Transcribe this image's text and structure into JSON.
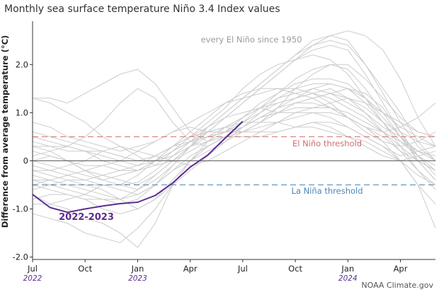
{
  "colors": {
    "el_nino": "#cc6f6f",
    "la_nina": "#4a86b8",
    "highlight": "#5b2d90",
    "background_series": "#cccccc",
    "axis": "#333333",
    "zero_line": "#555555",
    "gray_text": "#9a9a9a"
  },
  "chart_data": {
    "type": "line",
    "title": "Monthly sea surface temperature Niño 3.4 Index values",
    "ylabel": "Difference from average temperature (°C)",
    "xlabel": "",
    "ylim": [
      -2.05,
      2.9
    ],
    "xlim": [
      0,
      23
    ],
    "yticks": [
      {
        "value": 2.0,
        "label": "2.0"
      },
      {
        "value": 1.0,
        "label": "1.0"
      },
      {
        "value": 0,
        "label": "0"
      },
      {
        "value": -1.0,
        "label": "-1.0"
      },
      {
        "value": -2.0,
        "label": "-2.0"
      }
    ],
    "xticks": [
      {
        "index": 0,
        "label": "Jul",
        "year": "2022"
      },
      {
        "index": 3,
        "label": "Oct",
        "year": ""
      },
      {
        "index": 6,
        "label": "Jan",
        "year": "2023"
      },
      {
        "index": 9,
        "label": "Apr",
        "year": ""
      },
      {
        "index": 12,
        "label": "Jul",
        "year": ""
      },
      {
        "index": 15,
        "label": "Oct",
        "year": ""
      },
      {
        "index": 18,
        "label": "Jan",
        "year": "2024"
      },
      {
        "index": 21,
        "label": "Apr",
        "year": ""
      }
    ],
    "thresholds": [
      {
        "name": "El Niño threshold",
        "value": 0.5,
        "color": "#cc6f6f"
      },
      {
        "name": "La Niña threshold",
        "value": -0.5,
        "color": "#4a86b8"
      }
    ],
    "highlight_series": {
      "name": "2022-2023",
      "values": [
        -0.7,
        -0.97,
        -1.07,
        -1.0,
        -0.94,
        -0.89,
        -0.86,
        -0.72,
        -0.46,
        -0.13,
        0.12,
        0.47,
        0.82
      ]
    },
    "background_label": "every El Niño since 1950",
    "background_series": [
      {
        "name": "El Niño 1",
        "values": [
          0.3,
          0.2,
          0.0,
          -0.2,
          -0.4,
          -0.5,
          -0.45,
          -0.2,
          0.1,
          0.4,
          0.7,
          1.0,
          1.3,
          1.6,
          1.9,
          2.2,
          2.4,
          2.5,
          2.4,
          2.0,
          1.4,
          0.8,
          0.3,
          0.0
        ]
      },
      {
        "name": "El Niño 2",
        "values": [
          -0.5,
          -0.6,
          -0.7,
          -0.8,
          -0.8,
          -0.9,
          -0.8,
          -0.5,
          -0.1,
          0.3,
          0.6,
          0.9,
          1.2,
          1.5,
          1.8,
          2.1,
          2.3,
          2.4,
          2.3,
          1.8,
          1.2,
          0.6,
          0.1,
          -0.3
        ]
      },
      {
        "name": "El Niño 3",
        "values": [
          1.3,
          1.2,
          1.0,
          0.8,
          0.5,
          0.3,
          0.1,
          -0.1,
          0.0,
          0.3,
          0.6,
          0.9,
          1.2,
          1.5,
          1.8,
          2.1,
          2.4,
          2.6,
          2.7,
          2.6,
          2.3,
          1.7,
          0.9,
          0.3
        ]
      },
      {
        "name": "El Niño 4",
        "values": [
          0.1,
          0.2,
          0.3,
          0.5,
          0.8,
          1.2,
          1.5,
          1.3,
          0.8,
          0.4,
          0.3,
          0.5,
          0.7,
          0.9,
          1.0,
          1.1,
          1.1,
          1.2,
          1.3,
          1.2,
          1.0,
          0.8,
          0.6,
          0.5
        ]
      },
      {
        "name": "El Niño 5",
        "values": [
          1.3,
          1.3,
          1.2,
          1.4,
          1.6,
          1.8,
          1.9,
          1.6,
          1.1,
          0.6,
          0.4,
          0.6,
          0.9,
          1.1,
          1.3,
          1.4,
          1.5,
          1.4,
          1.2,
          1.0,
          0.7,
          0.5,
          0.2,
          0.0
        ]
      },
      {
        "name": "El Niño 6",
        "values": [
          -0.2,
          -0.3,
          -0.4,
          -0.5,
          -0.6,
          -0.8,
          -1.0,
          -0.8,
          -0.4,
          0.0,
          0.3,
          0.5,
          0.7,
          0.9,
          1.1,
          1.3,
          1.5,
          1.6,
          1.5,
          1.3,
          0.9,
          0.5,
          0.1,
          -0.2
        ]
      },
      {
        "name": "El Niño 7",
        "values": [
          -1.1,
          -1.2,
          -1.3,
          -1.5,
          -1.6,
          -1.7,
          -1.4,
          -1.0,
          -0.5,
          0.0,
          0.4,
          0.7,
          0.9,
          1.1,
          1.2,
          1.3,
          1.4,
          1.5,
          1.3,
          1.0,
          0.6,
          0.2,
          -0.2,
          -0.5
        ]
      },
      {
        "name": "El Niño 8",
        "values": [
          -0.7,
          -0.9,
          -1.0,
          -1.2,
          -1.3,
          -1.5,
          -1.8,
          -1.3,
          -0.5,
          0.0,
          0.3,
          0.5,
          0.7,
          0.9,
          1.0,
          1.2,
          1.3,
          1.4,
          1.5,
          1.4,
          1.1,
          0.6,
          0.0,
          -0.4
        ]
      },
      {
        "name": "El Niño 9",
        "values": [
          0.6,
          0.5,
          0.4,
          0.3,
          0.2,
          0.1,
          0.0,
          0.1,
          0.3,
          0.5,
          0.7,
          0.9,
          1.0,
          1.1,
          1.0,
          1.0,
          1.0,
          1.0,
          0.9,
          0.7,
          0.4,
          0.0,
          -0.5,
          -0.9
        ]
      },
      {
        "name": "El Niño 10",
        "values": [
          0.4,
          0.3,
          0.3,
          0.2,
          0.1,
          0.0,
          -0.1,
          0.0,
          0.2,
          0.4,
          0.6,
          0.7,
          0.8,
          0.8,
          0.8,
          0.7,
          0.7,
          0.6,
          0.5,
          0.4,
          0.2,
          0.0,
          -0.3,
          -0.5
        ]
      },
      {
        "name": "El Niño 11",
        "values": [
          -0.4,
          -0.4,
          -0.5,
          -0.5,
          -0.5,
          -0.5,
          -0.3,
          0.0,
          0.3,
          0.5,
          0.6,
          0.7,
          0.6,
          0.6,
          0.6,
          0.7,
          0.8,
          0.8,
          0.7,
          0.5,
          0.3,
          0.0,
          -0.5,
          -1.4
        ]
      },
      {
        "name": "El Niño 12",
        "values": [
          -0.3,
          -0.4,
          -0.5,
          -0.6,
          -0.7,
          -0.8,
          -0.7,
          -0.5,
          -0.2,
          0.1,
          0.3,
          0.5,
          0.8,
          1.1,
          1.4,
          1.6,
          1.7,
          1.7,
          1.6,
          1.3,
          1.0,
          0.7,
          0.5,
          0.3
        ]
      },
      {
        "name": "El Niño 13",
        "values": [
          0.0,
          0.1,
          0.0,
          -0.1,
          -0.1,
          -0.2,
          -0.2,
          -0.1,
          0.2,
          0.5,
          0.8,
          1.1,
          1.5,
          1.8,
          2.0,
          2.1,
          2.2,
          2.1,
          1.8,
          1.3,
          0.8,
          0.4,
          0.1,
          -0.1
        ]
      },
      {
        "name": "El Niño 14",
        "values": [
          -0.9,
          -0.9,
          -0.8,
          -0.7,
          -0.5,
          -0.5,
          -0.6,
          -0.4,
          -0.1,
          0.3,
          0.7,
          1.0,
          1.3,
          1.6,
          1.9,
          2.2,
          2.5,
          2.6,
          2.5,
          2.0,
          1.5,
          1.0,
          0.4,
          0.0
        ]
      },
      {
        "name": "El Niño 15",
        "values": [
          -0.1,
          -0.2,
          -0.3,
          -0.4,
          -0.3,
          -0.2,
          -0.1,
          0.1,
          0.3,
          0.4,
          0.5,
          0.6,
          0.6,
          0.7,
          0.8,
          0.9,
          1.0,
          0.9,
          0.7,
          0.5,
          0.3,
          0.1,
          0.2,
          0.3
        ]
      },
      {
        "name": "El Niño 16",
        "values": [
          0.2,
          0.1,
          0.0,
          -0.2,
          -0.3,
          -0.4,
          -0.5,
          -0.3,
          0.0,
          0.2,
          0.4,
          0.5,
          0.6,
          0.8,
          1.0,
          1.2,
          1.3,
          1.4,
          1.3,
          1.1,
          0.8,
          0.6,
          0.4,
          0.3
        ]
      },
      {
        "name": "El Niño 17",
        "values": [
          -0.6,
          -0.5,
          -0.4,
          -0.4,
          -0.5,
          -0.6,
          -0.7,
          -0.5,
          -0.2,
          0.0,
          0.2,
          0.4,
          0.6,
          0.8,
          1.1,
          1.5,
          1.8,
          2.0,
          2.0,
          1.7,
          1.3,
          0.9,
          0.6,
          0.5
        ]
      },
      {
        "name": "El Niño 18",
        "values": [
          0.5,
          0.4,
          0.3,
          0.2,
          0.0,
          -0.1,
          -0.2,
          0.0,
          0.3,
          0.6,
          0.9,
          1.2,
          1.4,
          1.5,
          1.5,
          1.4,
          1.3,
          1.1,
          0.9,
          0.7,
          0.6,
          0.7,
          0.9,
          1.2
        ]
      },
      {
        "name": "El Niño 19",
        "values": [
          -0.2,
          -0.2,
          -0.1,
          0.0,
          0.2,
          0.3,
          0.2,
          0.1,
          0.0,
          -0.1,
          0.0,
          0.2,
          0.4,
          0.6,
          0.8,
          1.0,
          1.1,
          1.1,
          1.0,
          0.8,
          0.6,
          0.4,
          0.2,
          0.1
        ]
      },
      {
        "name": "El Niño 20",
        "values": [
          -0.8,
          -0.7,
          -0.7,
          -0.8,
          -1.0,
          -1.1,
          -1.0,
          -0.8,
          -0.5,
          -0.2,
          0.1,
          0.4,
          0.7,
          1.0,
          1.3,
          1.5,
          1.6,
          1.6,
          1.5,
          1.2,
          0.8,
          0.3,
          -0.2,
          -0.6
        ]
      },
      {
        "name": "El Niño 21",
        "values": [
          0.8,
          0.7,
          0.5,
          0.4,
          0.3,
          0.2,
          0.3,
          0.4,
          0.6,
          0.8,
          1.0,
          1.2,
          1.3,
          1.4,
          1.5,
          1.5,
          1.4,
          1.2,
          0.9,
          0.6,
          0.4,
          0.3,
          0.4,
          0.6
        ]
      },
      {
        "name": "El Niño 22",
        "values": [
          0.0,
          -0.1,
          -0.2,
          -0.3,
          -0.4,
          -0.3,
          -0.2,
          0.0,
          0.2,
          0.4,
          0.5,
          0.6,
          0.8,
          1.0,
          1.2,
          1.3,
          1.4,
          1.3,
          1.1,
          0.9,
          0.6,
          0.3,
          0.0,
          -0.2
        ]
      },
      {
        "name": "El Niño 23",
        "values": [
          -0.4,
          -0.5,
          -0.6,
          -0.7,
          -0.8,
          -0.8,
          -0.6,
          -0.3,
          0.0,
          0.3,
          0.5,
          0.7,
          0.9,
          1.2,
          1.4,
          1.7,
          1.9,
          2.0,
          1.9,
          1.5,
          1.0,
          0.5,
          0.0,
          -0.4
        ]
      },
      {
        "name": "El Niño 24",
        "values": [
          0.3,
          0.3,
          0.2,
          0.2,
          0.2,
          0.1,
          0.0,
          0.0,
          0.1,
          0.3,
          0.4,
          0.5,
          0.5,
          0.5,
          0.6,
          0.7,
          0.8,
          0.7,
          0.5,
          0.3,
          0.1,
          0.0,
          0.1,
          0.2
        ]
      },
      {
        "name": "El Niño 25",
        "values": [
          -0.5,
          -0.4,
          -0.3,
          -0.2,
          -0.1,
          0.0,
          0.2,
          0.4,
          0.6,
          0.7,
          0.6,
          0.6,
          0.7,
          0.9,
          1.1,
          1.2,
          1.2,
          1.1,
          0.9,
          0.7,
          0.5,
          0.2,
          0.0,
          -0.2
        ]
      }
    ],
    "annotations": {
      "el_nino_label": "El Niño threshold",
      "la_nina_label": "La Niña threshold",
      "highlight_label": "2022-2023"
    },
    "credit": "NOAA Climate.gov"
  }
}
